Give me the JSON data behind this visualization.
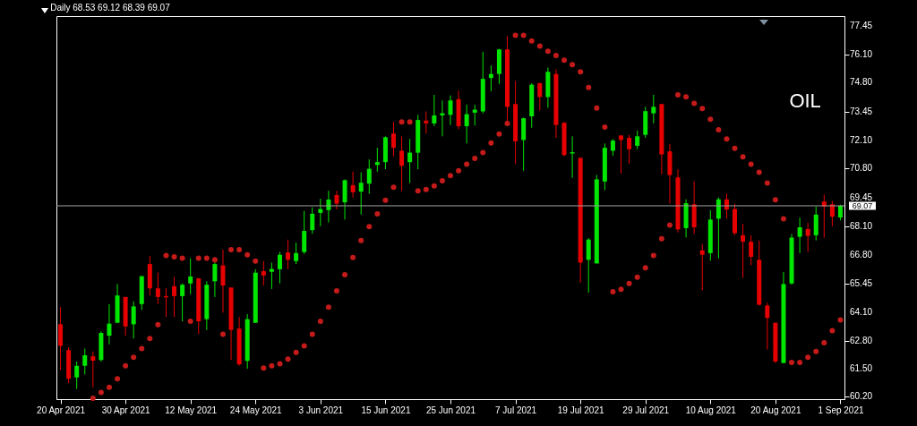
{
  "chart_data": {
    "type": "candlestick",
    "title": "Daily 68.53 69.12 68.39 69.07",
    "categories": [
      "20 Apr 2021",
      null,
      null,
      null,
      null,
      null,
      null,
      null,
      "30 Apr 2021",
      null,
      null,
      null,
      null,
      null,
      null,
      null,
      "12 May 2021",
      null,
      null,
      null,
      null,
      null,
      null,
      null,
      "24 May 2021",
      null,
      null,
      null,
      null,
      null,
      null,
      null,
      "3 Jun 2021",
      null,
      null,
      null,
      null,
      null,
      null,
      null,
      "15 Jun 2021",
      null,
      null,
      null,
      null,
      null,
      null,
      null,
      "25 Jun 2021",
      null,
      null,
      null,
      null,
      null,
      null,
      null,
      "7 Jul 2021",
      null,
      null,
      null,
      null,
      null,
      null,
      null,
      "19 Jul 2021",
      null,
      null,
      null,
      null,
      null,
      null,
      null,
      "29 Jul 2021",
      null,
      null,
      null,
      null,
      null,
      null,
      null,
      "10 Aug 2021",
      null,
      null,
      null,
      null,
      null,
      null,
      null,
      "20 Aug 2021",
      null,
      null,
      null,
      null,
      null,
      null,
      null,
      "1 Sep 2021"
    ],
    "ohlc": [
      [
        63.56,
        64.36,
        61.43,
        62.56
      ],
      [
        62.36,
        62.5,
        60.83,
        61.03
      ],
      [
        61.09,
        61.83,
        60.56,
        61.63
      ],
      [
        61.63,
        62.43,
        61.23,
        62.12
      ],
      [
        62.07,
        62.3,
        60.63,
        61.87
      ],
      [
        61.9,
        63.23,
        61.83,
        63.16
      ],
      [
        63.03,
        64.5,
        62.63,
        63.59
      ],
      [
        63.63,
        65.43,
        63.63,
        64.9
      ],
      [
        64.83,
        64.83,
        63.03,
        63.46
      ],
      [
        63.56,
        64.63,
        62.9,
        64.39
      ],
      [
        64.5,
        65.8,
        64.23,
        65.8
      ],
      [
        66.36,
        66.74,
        64.9,
        65.23
      ],
      [
        65.23,
        65.96,
        64.5,
        64.83
      ],
      [
        64.87,
        65.23,
        63.9,
        64.81
      ],
      [
        65.33,
        65.76,
        63.9,
        64.87
      ],
      [
        64.87,
        65.46,
        63.7,
        65.4
      ],
      [
        65.46,
        66.63,
        64.96,
        65.78
      ],
      [
        65.7,
        65.7,
        63.1,
        63.7
      ],
      [
        63.8,
        65.56,
        63.3,
        65.4
      ],
      [
        65.56,
        66.43,
        64.83,
        66.36
      ],
      [
        66.3,
        67.03,
        64.1,
        65.36
      ],
      [
        65.27,
        65.27,
        61.9,
        63.3
      ],
      [
        63.36,
        63.9,
        61.63,
        61.7
      ],
      [
        61.86,
        64.03,
        61.5,
        63.8
      ],
      [
        63.63,
        66.12,
        63.63,
        65.96
      ],
      [
        66.03,
        66.5,
        65.36,
        65.83
      ],
      [
        66.0,
        66.43,
        65.2,
        66.13
      ],
      [
        66.12,
        66.92,
        65.46,
        66.79
      ],
      [
        66.9,
        67.5,
        66.12,
        66.56
      ],
      [
        66.5,
        67.36,
        66.36,
        66.87
      ],
      [
        66.92,
        68.83,
        66.83,
        67.9
      ],
      [
        67.94,
        69.0,
        67.77,
        68.7
      ],
      [
        68.74,
        69.4,
        68.12,
        68.92
      ],
      [
        68.87,
        69.77,
        68.3,
        69.36
      ],
      [
        69.57,
        69.77,
        68.9,
        69.17
      ],
      [
        69.23,
        70.3,
        68.43,
        70.26
      ],
      [
        70.03,
        70.66,
        69.46,
        69.7
      ],
      [
        69.73,
        70.63,
        68.66,
        70.14
      ],
      [
        70.1,
        71.23,
        69.63,
        70.79
      ],
      [
        70.97,
        71.77,
        70.66,
        71.1
      ],
      [
        71.1,
        72.3,
        70.77,
        72.26
      ],
      [
        72.43,
        72.97,
        71.37,
        71.77
      ],
      [
        71.63,
        72.3,
        69.76,
        70.93
      ],
      [
        71.1,
        72.17,
        70.13,
        71.54
      ],
      [
        71.54,
        73.3,
        70.77,
        73.06
      ],
      [
        73.03,
        73.46,
        72.43,
        72.9
      ],
      [
        72.9,
        74.23,
        72.77,
        73.27
      ],
      [
        73.27,
        73.97,
        72.3,
        73.37
      ],
      [
        73.3,
        74.2,
        72.83,
        73.97
      ],
      [
        74.03,
        74.43,
        72.63,
        72.77
      ],
      [
        72.77,
        73.77,
        71.97,
        73.33
      ],
      [
        73.4,
        73.77,
        72.8,
        73.54
      ],
      [
        73.46,
        76.23,
        73.37,
        74.97
      ],
      [
        75.01,
        75.6,
        74.4,
        75.2
      ],
      [
        75.2,
        76.37,
        74.74,
        76.34
      ],
      [
        76.34,
        76.97,
        72.83,
        73.67
      ],
      [
        73.8,
        74.87,
        71.01,
        72.07
      ],
      [
        72.13,
        73.17,
        70.7,
        73.14
      ],
      [
        73.23,
        74.77,
        72.7,
        74.7
      ],
      [
        74.77,
        74.8,
        73.5,
        74.13
      ],
      [
        74.13,
        75.5,
        73.63,
        75.3
      ],
      [
        75.2,
        75.41,
        72.23,
        72.83
      ],
      [
        72.93,
        72.97,
        71.37,
        71.43
      ],
      [
        71.5,
        72.3,
        70.37,
        71.56
      ],
      [
        71.3,
        71.3,
        65.5,
        66.43
      ],
      [
        66.56,
        67.57,
        65.03,
        67.5
      ],
      [
        66.39,
        70.5,
        66.39,
        70.3
      ],
      [
        70.2,
        71.97,
        69.8,
        71.77
      ],
      [
        71.63,
        72.17,
        71.4,
        72.1
      ],
      [
        72.34,
        72.34,
        70.57,
        72.13
      ],
      [
        72.23,
        72.37,
        71.03,
        71.7
      ],
      [
        71.86,
        72.57,
        71.7,
        72.3
      ],
      [
        72.37,
        73.67,
        72.23,
        73.47
      ],
      [
        73.37,
        74.23,
        72.9,
        73.67
      ],
      [
        73.8,
        73.8,
        70.53,
        71.46
      ],
      [
        71.6,
        71.94,
        69.17,
        70.5
      ],
      [
        70.39,
        70.77,
        67.83,
        67.97
      ],
      [
        68.03,
        69.37,
        67.6,
        69.19
      ],
      [
        69.14,
        70.2,
        67.77,
        68.07
      ],
      [
        67.0,
        67.3,
        65.14,
        66.79
      ],
      [
        66.87,
        68.87,
        66.52,
        68.43
      ],
      [
        68.47,
        69.46,
        66.63,
        69.37
      ],
      [
        69.37,
        69.63,
        68.47,
        68.9
      ],
      [
        68.92,
        69.16,
        67.7,
        67.8
      ],
      [
        67.7,
        68.23,
        65.72,
        67.4
      ],
      [
        67.4,
        67.7,
        66.3,
        66.7
      ],
      [
        66.56,
        67.46,
        64.43,
        64.47
      ],
      [
        64.43,
        64.56,
        62.39,
        63.86
      ],
      [
        63.63,
        63.63,
        61.76,
        61.83
      ],
      [
        61.76,
        65.99,
        61.76,
        65.43
      ],
      [
        65.46,
        67.76,
        65.4,
        67.59
      ],
      [
        67.63,
        68.52,
        66.87,
        68.07
      ],
      [
        67.99,
        68.28,
        66.92,
        67.67
      ],
      [
        67.7,
        69.03,
        67.46,
        68.66
      ],
      [
        69.27,
        69.59,
        67.59,
        69.03
      ],
      [
        69.14,
        69.3,
        68.12,
        68.57
      ],
      [
        68.53,
        69.12,
        68.39,
        69.07
      ]
    ],
    "colors": [
      "#e60000",
      "#e60000",
      "#00e600",
      "#00e600",
      "#e60000",
      "#00e600",
      "#00e600",
      "#00e600",
      "#e60000",
      "#00e600",
      "#00e600",
      "#e60000",
      "#e60000",
      "#e60000",
      "#e60000",
      "#00e600",
      "#00e600",
      "#e60000",
      "#00e600",
      "#00e600",
      "#e60000",
      "#e60000",
      "#e60000",
      "#00e600",
      "#00e600",
      "#e60000",
      "#00e600",
      "#00e600",
      "#e60000",
      "#00e600",
      "#00e600",
      "#00e600",
      "#00e600",
      "#00e600",
      "#e60000",
      "#00e600",
      "#e60000",
      "#00e600",
      "#00e600",
      "#00e600",
      "#00e600",
      "#e60000",
      "#e60000",
      "#00e600",
      "#00e600",
      "#e60000",
      "#00e600",
      "#00e600",
      "#00e600",
      "#e60000",
      "#00e600",
      "#00e600",
      "#00e600",
      "#00e600",
      "#00e600",
      "#e60000",
      "#e60000",
      "#00e600",
      "#00e600",
      "#e60000",
      "#00e600",
      "#e60000",
      "#e60000",
      "#00e600",
      "#e60000",
      "#00e600",
      "#00e600",
      "#00e600",
      "#00e600",
      "#e60000",
      "#e60000",
      "#00e600",
      "#00e600",
      "#00e600",
      "#e60000",
      "#e60000",
      "#e60000",
      "#00e600",
      "#e60000",
      "#e60000",
      "#00e600",
      "#00e600",
      "#e60000",
      "#e60000",
      "#e60000",
      "#e60000",
      "#e60000",
      "#e60000",
      "#e60000",
      "#00e600",
      "#00e600",
      "#00e600",
      "#e60000",
      "#00e600",
      "#e60000",
      "#e60000",
      "#00e600"
    ],
    "series": [
      {
        "type": "scatter",
        "color": "#c41a1a",
        "values": [
          null,
          null,
          null,
          null,
          60.12,
          60.39,
          60.63,
          61.03,
          61.63,
          62.03,
          62.43,
          62.9,
          63.54,
          66.76,
          66.7,
          66.63,
          63.7,
          66.63,
          66.63,
          66.56,
          63.1,
          67.03,
          67.03,
          66.79,
          66.5,
          61.53,
          61.63,
          61.72,
          61.94,
          62.25,
          62.56,
          63.1,
          63.7,
          64.36,
          65.11,
          65.86,
          66.66,
          67.46,
          68.1,
          68.69,
          69.33,
          69.93,
          72.97,
          72.97,
          69.77,
          69.83,
          69.99,
          70.23,
          70.47,
          70.7,
          71.0,
          71.27,
          71.54,
          71.99,
          72.41,
          72.9,
          77.0,
          77.0,
          76.74,
          76.5,
          76.26,
          76.06,
          75.84,
          75.63,
          75.3,
          74.57,
          73.61,
          72.73,
          65.07,
          65.19,
          65.46,
          65.75,
          66.19,
          66.76,
          67.54,
          68.17,
          74.23,
          74.13,
          73.83,
          73.59,
          73.09,
          72.61,
          72.18,
          71.74,
          71.35,
          71.0,
          70.63,
          70.13,
          69.35,
          68.46,
          61.79,
          61.79,
          62.03,
          62.3,
          62.7,
          63.26,
          63.76
        ]
      }
    ],
    "ylim": [
      60.08,
      77.89
    ],
    "yticks": [
      {
        "value": 77.45,
        "label": "77.45"
      },
      {
        "value": 76.1,
        "label": "76.10"
      },
      {
        "value": 74.8,
        "label": "74.80"
      },
      {
        "value": 73.45,
        "label": "73.45"
      },
      {
        "value": 72.1,
        "label": "72.10"
      },
      {
        "value": 70.8,
        "label": "70.80"
      },
      {
        "value": 69.45,
        "label": "69.45"
      },
      {
        "value": 68.1,
        "label": "68.10"
      },
      {
        "value": 66.8,
        "label": "66.80"
      },
      {
        "value": 65.45,
        "label": "65.45"
      },
      {
        "value": 64.1,
        "label": "64.10"
      },
      {
        "value": 62.8,
        "label": "62.80"
      },
      {
        "value": 61.5,
        "label": "61.50"
      },
      {
        "value": 60.2,
        "label": "60.20"
      }
    ],
    "ref_lines": [
      {
        "axis": "y",
        "value": 69.07,
        "label": "69.07",
        "color": "#a0a0a0"
      }
    ],
    "annotations": [
      "OIL"
    ],
    "marker": "circle",
    "grid": false
  }
}
